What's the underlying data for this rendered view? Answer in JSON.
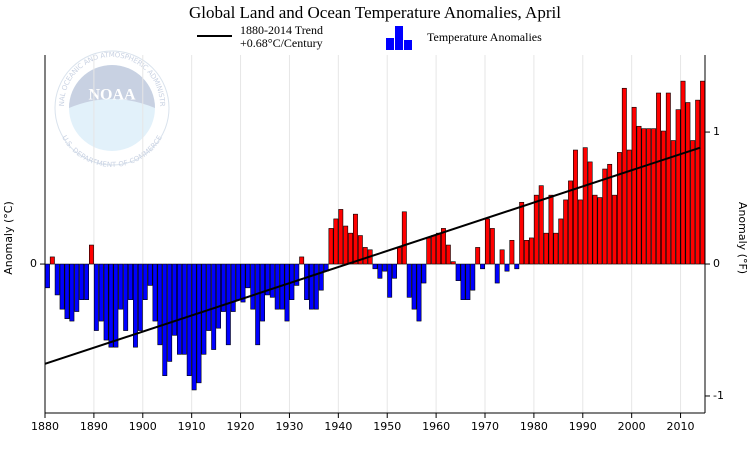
{
  "chart_data": {
    "type": "bar",
    "title": "Global Land and Ocean Temperature Anomalies, April",
    "ylabel": "Anomaly (°C)",
    "y2label": "Anomaly (°F)",
    "logo": {
      "text": "NOAA",
      "ring_top": "NATIONAL OCEANIC AND ATMOSPHERIC ADMINISTRATION",
      "ring_bottom": "U.S. DEPARTMENT OF COMMERCE"
    },
    "bar_legend": "Temperature Anomalies",
    "positive_color": "#ff0000",
    "negative_color": "#0000ff",
    "x": [
      1880,
      1881,
      1882,
      1883,
      1884,
      1885,
      1886,
      1887,
      1888,
      1889,
      1890,
      1891,
      1892,
      1893,
      1894,
      1895,
      1896,
      1897,
      1898,
      1899,
      1900,
      1901,
      1902,
      1903,
      1904,
      1905,
      1906,
      1907,
      1908,
      1909,
      1910,
      1911,
      1912,
      1913,
      1914,
      1915,
      1916,
      1917,
      1918,
      1919,
      1920,
      1921,
      1922,
      1923,
      1924,
      1925,
      1926,
      1927,
      1928,
      1929,
      1930,
      1931,
      1932,
      1933,
      1934,
      1935,
      1936,
      1937,
      1938,
      1939,
      1940,
      1941,
      1942,
      1943,
      1944,
      1945,
      1946,
      1947,
      1948,
      1949,
      1950,
      1951,
      1952,
      1953,
      1954,
      1955,
      1956,
      1957,
      1958,
      1959,
      1960,
      1961,
      1962,
      1963,
      1964,
      1965,
      1966,
      1967,
      1968,
      1969,
      1970,
      1971,
      1972,
      1973,
      1974,
      1975,
      1976,
      1977,
      1978,
      1979,
      1980,
      1981,
      1982,
      1983,
      1984,
      1985,
      1986,
      1987,
      1988,
      1989,
      1990,
      1991,
      1992,
      1993,
      1994,
      1995,
      1996,
      1997,
      1998,
      1999,
      2000,
      2001,
      2002,
      2003,
      2004,
      2005,
      2006,
      2007,
      2008,
      2009,
      2010,
      2011,
      2012,
      2013,
      2014
    ],
    "values": [
      -0.1,
      0.03,
      -0.13,
      -0.19,
      -0.23,
      -0.24,
      -0.2,
      -0.15,
      -0.15,
      0.08,
      -0.28,
      -0.24,
      -0.32,
      -0.35,
      -0.35,
      -0.19,
      -0.28,
      -0.15,
      -0.35,
      -0.28,
      -0.15,
      -0.09,
      -0.24,
      -0.34,
      -0.47,
      -0.41,
      -0.3,
      -0.38,
      -0.38,
      -0.47,
      -0.53,
      -0.5,
      -0.38,
      -0.28,
      -0.36,
      -0.27,
      -0.2,
      -0.34,
      -0.2,
      -0.15,
      -0.16,
      -0.1,
      -0.19,
      -0.34,
      -0.24,
      -0.13,
      -0.14,
      -0.19,
      -0.19,
      -0.24,
      -0.15,
      -0.09,
      0.03,
      -0.15,
      -0.19,
      -0.19,
      -0.11,
      -0.03,
      0.15,
      0.19,
      0.23,
      0.16,
      0.13,
      0.21,
      0.12,
      0.07,
      0.06,
      -0.02,
      -0.06,
      -0.03,
      -0.14,
      -0.06,
      0.07,
      0.22,
      -0.14,
      -0.19,
      -0.24,
      -0.08,
      0.11,
      0.12,
      0.13,
      0.15,
      0.08,
      0.01,
      -0.07,
      -0.15,
      -0.15,
      -0.11,
      0.07,
      -0.02,
      0.19,
      0.15,
      -0.08,
      0.06,
      -0.03,
      0.1,
      -0.02,
      0.26,
      0.1,
      0.11,
      0.29,
      0.33,
      0.13,
      0.29,
      0.13,
      0.19,
      0.27,
      0.35,
      0.48,
      0.27,
      0.49,
      0.43,
      0.29,
      0.28,
      0.4,
      0.42,
      0.29,
      0.47,
      0.74,
      0.48,
      0.66,
      0.58,
      0.57,
      0.57,
      0.57,
      0.72,
      0.56,
      0.72,
      0.52,
      0.65,
      0.77,
      0.68,
      0.52,
      0.69,
      0.77
    ],
    "trend": {
      "name": "1880-2014 Trend",
      "note": "+0.68°C/Century",
      "color": "#000000",
      "x": [
        1880,
        2014
      ],
      "values": [
        -0.42,
        0.49
      ]
    },
    "xlim": [
      1880,
      2015
    ],
    "xticks": [
      1880,
      1890,
      1900,
      1910,
      1920,
      1930,
      1940,
      1950,
      1960,
      1970,
      1980,
      1990,
      2000,
      2010
    ],
    "ylim": [
      -0.627,
      0.88
    ],
    "yticks": [
      0
    ],
    "y2lim": [
      -1.129,
      1.584
    ],
    "y2ticks": [
      -1,
      0,
      1
    ],
    "grid": true
  }
}
